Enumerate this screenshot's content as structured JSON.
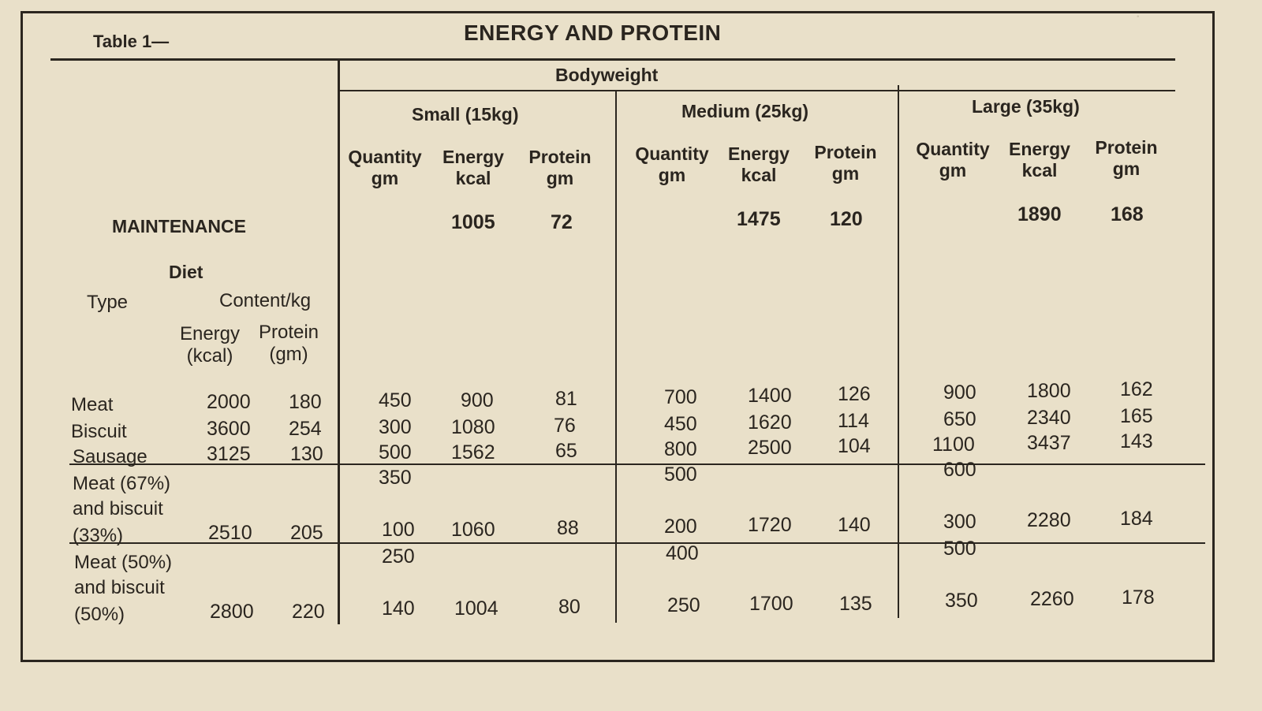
{
  "table_label": "Table 1—",
  "title": "ENERGY AND PROTEIN",
  "bodyweight_label": "Bodyweight",
  "groups": [
    "Small (15kg)",
    "Medium (25kg)",
    "Large (35kg)"
  ],
  "sub_headers": {
    "quantity": [
      "Quantity",
      "gm"
    ],
    "energy": [
      "Energy",
      "kcal"
    ],
    "protein": [
      "Protein",
      "gm"
    ]
  },
  "maintenance": {
    "label": "MAINTENANCE",
    "values": [
      [
        "1005",
        "72"
      ],
      [
        "1475",
        "120"
      ],
      [
        "1890",
        "168"
      ]
    ]
  },
  "diet_header": {
    "diet": "Diet",
    "type": "Type",
    "content": "Content/kg",
    "energy": [
      "Energy",
      "(kcal)"
    ],
    "protein": [
      "Protein",
      "(gm)"
    ]
  },
  "rows": [
    {
      "type": "Meat",
      "energy": "2000",
      "protein": "180",
      "data": [
        [
          "450",
          "900",
          "81"
        ],
        [
          "700",
          "1400",
          "126"
        ],
        [
          "900",
          "1800",
          "162"
        ]
      ]
    },
    {
      "type": "Biscuit",
      "energy": "3600",
      "protein": "254",
      "data": [
        [
          "300",
          "1080",
          "76"
        ],
        [
          "450",
          "1620",
          "114"
        ],
        [
          "650",
          "2340",
          "165"
        ]
      ]
    },
    {
      "type": "Sausage",
      "energy": "3125",
      "protein": "130",
      "data": [
        [
          "500",
          "1562",
          "65"
        ],
        [
          "800",
          "2500",
          "104"
        ],
        [
          "1100",
          "3437",
          "143"
        ]
      ]
    }
  ],
  "mixes": [
    {
      "type_lines": [
        "Meat (67%)",
        "and biscuit",
        "(33%)"
      ],
      "energy": "2510",
      "protein": "205",
      "meat_qty": [
        "350",
        "500",
        "600"
      ],
      "data": [
        [
          "100",
          "1060",
          "88"
        ],
        [
          "200",
          "1720",
          "140"
        ],
        [
          "300",
          "2280",
          "184"
        ]
      ]
    },
    {
      "type_lines": [
        "Meat (50%)",
        "and biscuit",
        "(50%)"
      ],
      "energy": "2800",
      "protein": "220",
      "meat_qty": [
        "250",
        "400",
        "500"
      ],
      "data": [
        [
          "140",
          "1004",
          "80"
        ],
        [
          "250",
          "1700",
          "135"
        ],
        [
          "350",
          "2260",
          "178"
        ]
      ]
    }
  ]
}
